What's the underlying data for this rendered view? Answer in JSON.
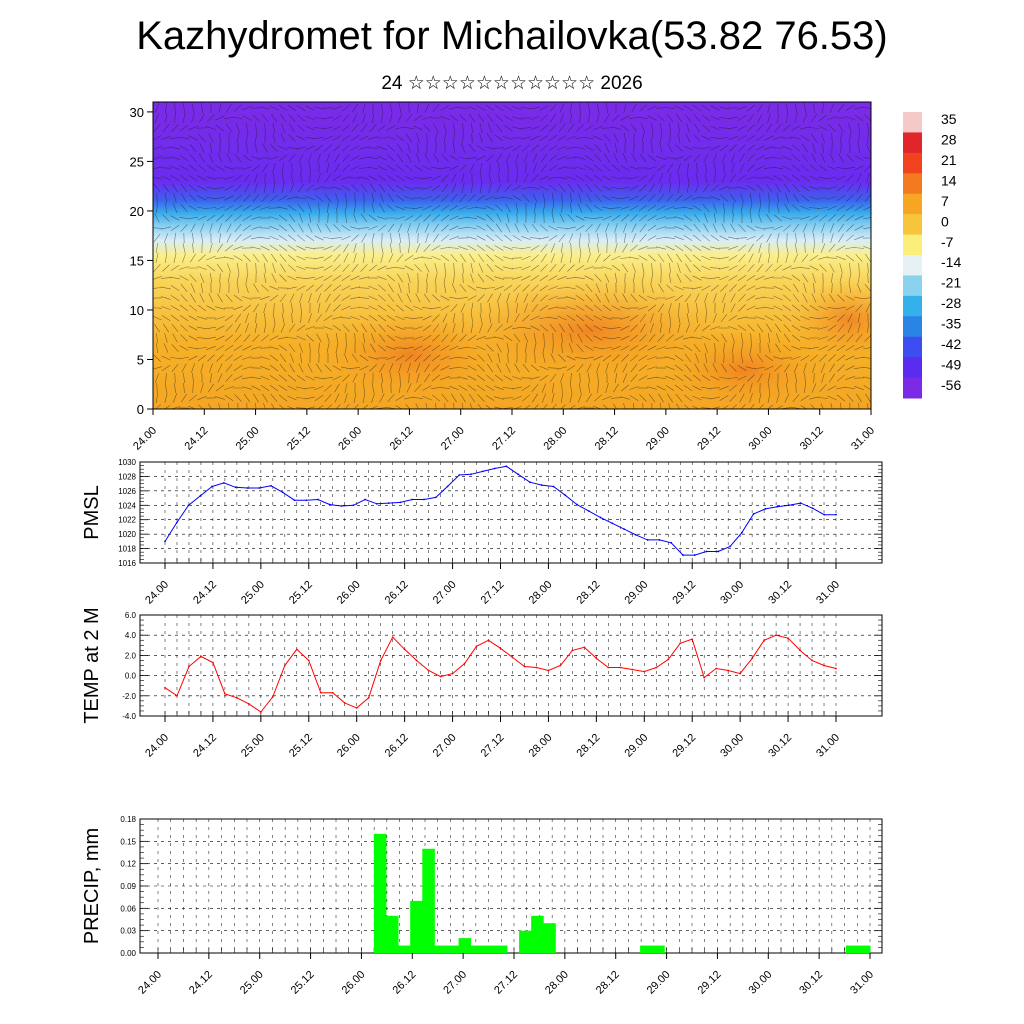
{
  "header": {
    "title": "Kazhydromet for Michailovka(53.82 76.53)",
    "subtitle": "24 ☆☆☆☆☆☆☆☆☆☆☆ 2026"
  },
  "chart_data": [
    {
      "type": "heatmap",
      "title": "",
      "xlabel": "",
      "ylabel": "",
      "x_tick_labels": [
        "24.00",
        "24.12",
        "25.00",
        "25.12",
        "26.00",
        "26.12",
        "27.00",
        "27.12",
        "28.00",
        "28.12",
        "29.00",
        "29.12",
        "30.00",
        "30.12",
        "31.00"
      ],
      "yticks": [
        0,
        5,
        10,
        15,
        20,
        25,
        30
      ],
      "ylim": [
        0,
        31
      ],
      "colorbar_labels": [
        "35",
        "28",
        "21",
        "14",
        "7",
        "0",
        "-7",
        "-14",
        "-21",
        "-28",
        "-35",
        "-42",
        "-49",
        "-56"
      ],
      "colorbar_colors": [
        "#f6c9c9",
        "#e0262b",
        "#f0421c",
        "#f47a20",
        "#f7a623",
        "#f8c53a",
        "#fbef7a",
        "#e7f1f5",
        "#8ad3ef",
        "#34b0eb",
        "#2a84e6",
        "#3c4ef0",
        "#5a2cf0",
        "#7b2be6"
      ],
      "overlay": "wind-vectors"
    },
    {
      "type": "line",
      "ylabel": "PMSL",
      "ylim": [
        1016,
        1030
      ],
      "yticks": [
        1016,
        1018,
        1020,
        1022,
        1024,
        1026,
        1028,
        1030
      ],
      "x_tick_labels": [
        "24.00",
        "24.12",
        "25.00",
        "25.12",
        "26.00",
        "26.12",
        "27.00",
        "27.12",
        "28.00",
        "28.12",
        "29.00",
        "29.12",
        "30.00",
        "30.12",
        "31.00"
      ],
      "color": "#0000ff",
      "values": [
        1019.0,
        1021.6,
        1024.0,
        1025.3,
        1026.6,
        1027.1,
        1026.5,
        1026.4,
        1026.4,
        1026.7,
        1025.8,
        1024.7,
        1024.7,
        1024.8,
        1024.1,
        1023.9,
        1024.0,
        1024.8,
        1024.2,
        1024.3,
        1024.4,
        1024.8,
        1024.8,
        1025.1,
        1026.6,
        1028.2,
        1028.3,
        1028.7,
        1029.1,
        1029.4,
        1028.3,
        1027.2,
        1026.8,
        1026.6,
        1025.4,
        1024.1,
        1023.2,
        1022.3,
        1021.5,
        1020.7,
        1019.9,
        1019.2,
        1019.2,
        1018.8,
        1017.1,
        1017.1,
        1017.6,
        1017.6,
        1018.3,
        1020.2,
        1022.8,
        1023.5,
        1023.8,
        1024.0,
        1024.3,
        1023.6,
        1022.7,
        1022.7
      ]
    },
    {
      "type": "line",
      "ylabel": "TEMP at 2 M",
      "ylim": [
        -4,
        6
      ],
      "ytick_labels": [
        "-4.0",
        "-2.0",
        "0.0",
        "2.0",
        "4.0",
        "6.0"
      ],
      "x_tick_labels": [
        "24.00",
        "24.12",
        "25.00",
        "25.12",
        "26.00",
        "26.12",
        "27.00",
        "27.12",
        "28.00",
        "28.12",
        "29.00",
        "29.12",
        "30.00",
        "30.12",
        "31.00"
      ],
      "color": "#ff0000",
      "values": [
        -1.2,
        -2.0,
        0.9,
        1.9,
        1.3,
        -1.8,
        -2.2,
        -2.8,
        -3.6,
        -2.1,
        1.0,
        2.6,
        1.5,
        -1.7,
        -1.7,
        -2.7,
        -3.2,
        -2.2,
        1.5,
        3.8,
        2.6,
        1.5,
        0.5,
        -0.1,
        0.2,
        1.2,
        2.9,
        3.5,
        2.7,
        1.8,
        0.9,
        0.8,
        0.5,
        1.0,
        2.5,
        2.8,
        1.7,
        0.8,
        0.8,
        0.6,
        0.4,
        0.8,
        1.6,
        3.2,
        3.6,
        -0.2,
        0.7,
        0.5,
        0.2,
        1.7,
        3.5,
        4.0,
        3.7,
        2.5,
        1.5,
        1.0,
        0.7
      ]
    },
    {
      "type": "bar",
      "ylabel": "PRECIP, mm",
      "ylim": [
        0,
        0.18
      ],
      "ytick_labels": [
        "0.00",
        "0.03",
        "0.06",
        "0.09",
        "0.12",
        "0.15",
        "0.18"
      ],
      "x_tick_labels": [
        "24.00",
        "24.12",
        "25.00",
        "25.12",
        "26.00",
        "26.12",
        "27.00",
        "27.12",
        "28.00",
        "28.12",
        "29.00",
        "29.12",
        "30.00",
        "30.12",
        "31.00"
      ],
      "color": "#00ff00",
      "values": [
        0,
        0,
        0,
        0,
        0,
        0,
        0,
        0,
        0,
        0,
        0,
        0,
        0,
        0,
        0,
        0,
        0,
        0,
        0,
        0.16,
        0.05,
        0.01,
        0.07,
        0.14,
        0.01,
        0.01,
        0.02,
        0.01,
        0.01,
        0.01,
        0,
        0.03,
        0.05,
        0.04,
        0,
        0,
        0,
        0,
        0,
        0,
        0,
        0.01,
        0.01,
        0,
        0,
        0,
        0,
        0,
        0,
        0,
        0,
        0,
        0,
        0,
        0,
        0,
        0,
        0,
        0.01,
        0.01
      ]
    }
  ]
}
